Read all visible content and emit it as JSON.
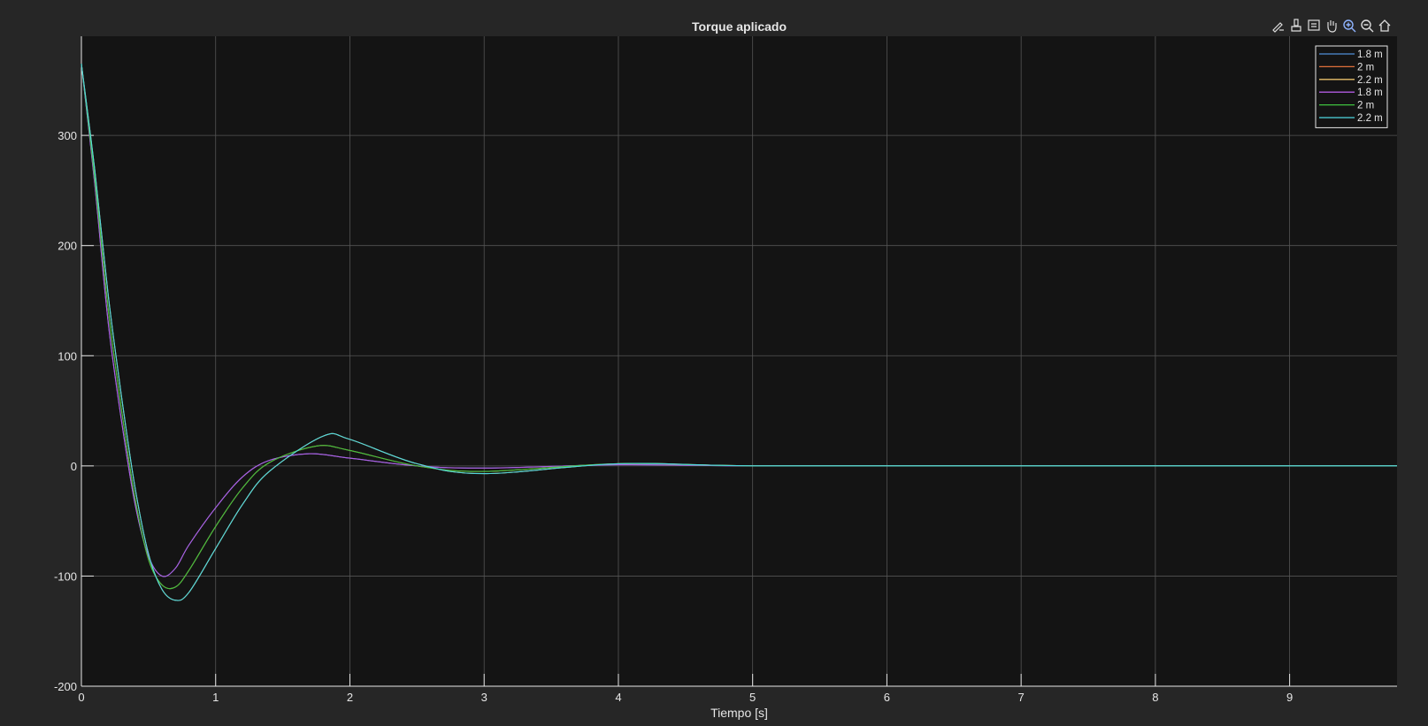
{
  "window": {
    "background": "#262626",
    "axes_background": "#141414"
  },
  "toolbar": {
    "items": [
      {
        "name": "edit-plot-icon",
        "label": "edit"
      },
      {
        "name": "brush-icon",
        "label": "brush"
      },
      {
        "name": "data-tips-icon",
        "label": "data tips"
      },
      {
        "name": "pan-icon",
        "label": "pan"
      },
      {
        "name": "zoom-in-icon",
        "label": "zoom in",
        "active": true
      },
      {
        "name": "zoom-out-icon",
        "label": "zoom out"
      },
      {
        "name": "home-icon",
        "label": "restore view"
      }
    ]
  },
  "chart_data": {
    "type": "line",
    "title": "Torque aplicado",
    "xlabel": "Tiempo [s]",
    "ylabel": "",
    "xlim": [
      0,
      9.8
    ],
    "ylim": [
      -200,
      390
    ],
    "xticks": [
      0,
      1,
      2,
      3,
      4,
      5,
      6,
      7,
      8,
      9
    ],
    "yticks": [
      -200,
      -100,
      0,
      100,
      200,
      300
    ],
    "grid": true,
    "legend_position": "top-right",
    "series": [
      {
        "name": "1.8 m",
        "color": "#4f8fd6",
        "x": [
          0,
          0.1,
          0.2,
          0.3,
          0.4,
          0.5,
          0.6,
          0.7,
          0.8,
          1.0,
          1.2,
          1.4,
          1.7,
          2.0,
          2.5,
          3.0,
          4.0,
          5.0,
          7.0,
          9.8
        ],
        "y": [
          365,
          255,
          130,
          40,
          -35,
          -82,
          -100,
          -93,
          -72,
          -38,
          -10,
          5,
          11,
          7,
          0,
          -2,
          1,
          0,
          0,
          0
        ]
      },
      {
        "name": "2 m",
        "color": "#e0703a",
        "x": [
          0,
          0.1,
          0.2,
          0.3,
          0.4,
          0.5,
          0.6,
          0.7,
          0.8,
          1.0,
          1.2,
          1.4,
          1.75,
          2.0,
          2.5,
          3.0,
          4.0,
          5.0,
          7.0,
          9.8
        ],
        "y": [
          365,
          260,
          142,
          50,
          -30,
          -85,
          -108,
          -110,
          -95,
          -55,
          -20,
          3,
          18,
          14,
          0,
          -5,
          2,
          0,
          0,
          0
        ]
      },
      {
        "name": "2.2 m",
        "color": "#e8c06a",
        "x": [
          0,
          0.1,
          0.2,
          0.3,
          0.4,
          0.5,
          0.6,
          0.7,
          0.8,
          1.0,
          1.2,
          1.4,
          1.8,
          2.0,
          2.5,
          3.0,
          4.0,
          5.0,
          7.0,
          9.8
        ],
        "y": [
          365,
          268,
          155,
          62,
          -20,
          -80,
          -112,
          -122,
          -115,
          -75,
          -35,
          -5,
          27,
          24,
          2,
          -7,
          2,
          0,
          0,
          0
        ]
      },
      {
        "name": "1.8 m",
        "color": "#b15be0",
        "x": [
          0,
          0.1,
          0.2,
          0.3,
          0.4,
          0.5,
          0.6,
          0.7,
          0.8,
          1.0,
          1.2,
          1.4,
          1.7,
          2.0,
          2.5,
          3.0,
          4.0,
          5.0,
          7.0,
          9.8
        ],
        "y": [
          365,
          255,
          130,
          40,
          -35,
          -82,
          -100,
          -93,
          -72,
          -38,
          -10,
          5,
          11,
          7,
          0,
          -2,
          1,
          0,
          0,
          0
        ]
      },
      {
        "name": "2 m",
        "color": "#3fc23f",
        "x": [
          0,
          0.1,
          0.2,
          0.3,
          0.4,
          0.5,
          0.6,
          0.7,
          0.8,
          1.0,
          1.2,
          1.4,
          1.75,
          2.0,
          2.5,
          3.0,
          4.0,
          5.0,
          7.0,
          9.8
        ],
        "y": [
          365,
          260,
          142,
          50,
          -30,
          -85,
          -108,
          -110,
          -95,
          -55,
          -20,
          3,
          18,
          14,
          0,
          -5,
          2,
          0,
          0,
          0
        ]
      },
      {
        "name": "2.2 m",
        "color": "#4fd8e0",
        "x": [
          0,
          0.1,
          0.2,
          0.3,
          0.4,
          0.5,
          0.6,
          0.7,
          0.8,
          1.0,
          1.2,
          1.4,
          1.8,
          2.0,
          2.5,
          3.0,
          4.0,
          5.0,
          7.0,
          9.8
        ],
        "y": [
          365,
          268,
          155,
          62,
          -20,
          -80,
          -112,
          -122,
          -115,
          -75,
          -35,
          -5,
          27,
          24,
          2,
          -7,
          2,
          0,
          0,
          0
        ]
      }
    ]
  }
}
